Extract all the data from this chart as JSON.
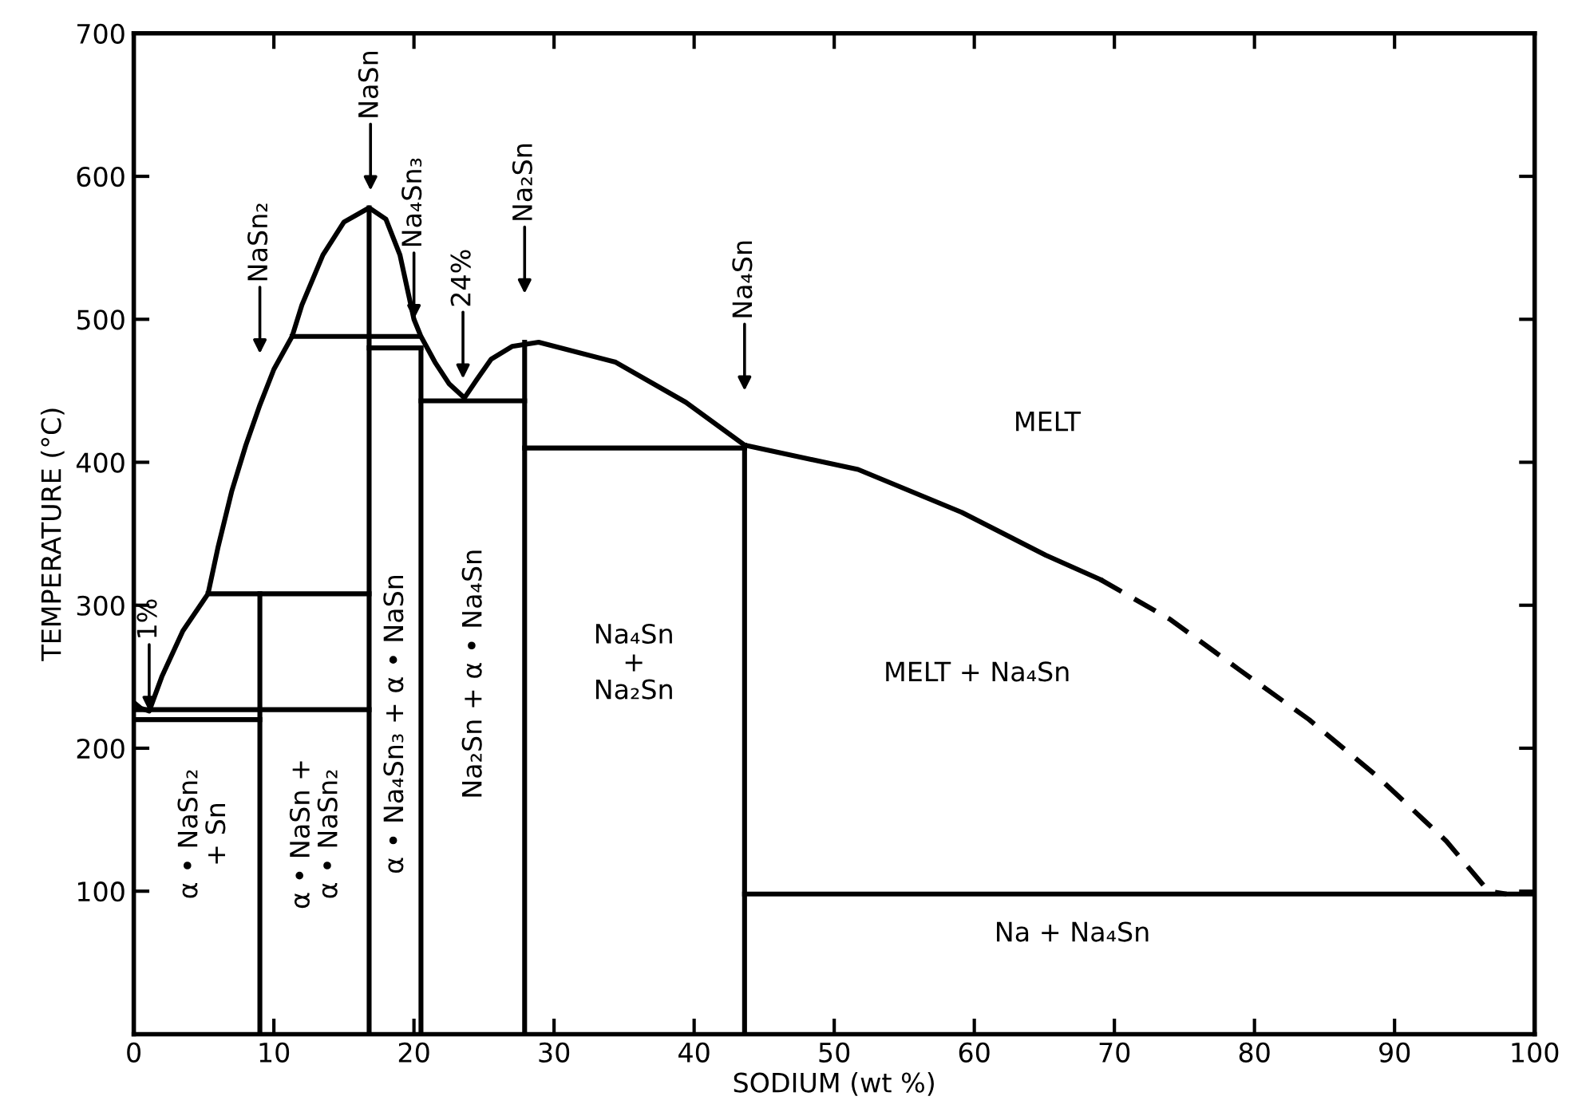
{
  "chart_data": {
    "type": "line",
    "xlabel": "SODIUM (wt %)",
    "ylabel": "TEMPERATURE (°C)",
    "xlim": [
      0,
      100
    ],
    "ylim": [
      0,
      700
    ],
    "xticks": [
      0,
      10,
      20,
      30,
      40,
      50,
      60,
      70,
      80,
      90,
      100
    ],
    "yticks": [
      100,
      200,
      300,
      400,
      500,
      600,
      700
    ],
    "grid": false,
    "legend": false,
    "marker": "none",
    "series": [
      {
        "color": "#000000",
        "line_style": "solid",
        "x": [
          0,
          0.5,
          1.1,
          2,
          3.5,
          5.3,
          6,
          7,
          8,
          9,
          10,
          11.3,
          12,
          13.5,
          15,
          16.8,
          18,
          19,
          20,
          20.5,
          21.5,
          22.5,
          23.6,
          24.5,
          25.5,
          27,
          28.9,
          34.4,
          39.4,
          43.6,
          51.7,
          59.1,
          65.1,
          69
        ],
        "values": [
          232,
          228,
          226,
          250,
          282,
          308,
          340,
          380,
          412,
          440,
          465,
          488,
          510,
          545,
          568,
          578,
          570,
          545,
          500,
          488,
          470,
          455,
          445,
          458,
          472,
          481,
          484,
          470,
          442,
          412,
          395,
          365,
          335,
          318
        ]
      },
      {
        "color": "#000000",
        "line_style": "dashed",
        "x": [
          69,
          74,
          78.9,
          83.9,
          88.8,
          93.7,
          96.7,
          98
        ],
        "values": [
          318,
          290,
          255,
          220,
          180,
          135,
          100,
          98
        ]
      },
      {
        "color": "#000000",
        "line_style": "solid",
        "x": [
          0,
          16.8
        ],
        "values": [
          227,
          227
        ]
      },
      {
        "color": "#000000",
        "line_style": "solid",
        "x": [
          0,
          9
        ],
        "values": [
          220,
          220
        ]
      },
      {
        "color": "#000000",
        "line_style": "solid",
        "x": [
          5.3,
          16.8
        ],
        "values": [
          308,
          308
        ]
      },
      {
        "color": "#000000",
        "line_style": "solid",
        "x": [
          9,
          9
        ],
        "values": [
          0,
          308
        ]
      },
      {
        "color": "#000000",
        "line_style": "solid",
        "x": [
          16.8,
          16.8
        ],
        "values": [
          0,
          578
        ]
      },
      {
        "color": "#000000",
        "line_style": "solid",
        "x": [
          11.3,
          20.3
        ],
        "values": [
          488,
          488
        ]
      },
      {
        "color": "#000000",
        "line_style": "solid",
        "x": [
          16.8,
          20.5
        ],
        "values": [
          480,
          480
        ]
      },
      {
        "color": "#000000",
        "line_style": "solid",
        "x": [
          20.5,
          20.5
        ],
        "values": [
          0,
          480
        ]
      },
      {
        "color": "#000000",
        "line_style": "solid",
        "x": [
          20.5,
          27.9
        ],
        "values": [
          443,
          443
        ]
      },
      {
        "color": "#000000",
        "line_style": "solid",
        "x": [
          27.9,
          27.9
        ],
        "values": [
          0,
          484
        ]
      },
      {
        "color": "#000000",
        "line_style": "solid",
        "x": [
          27.9,
          43.6
        ],
        "values": [
          410,
          410
        ]
      },
      {
        "color": "#000000",
        "line_style": "solid",
        "x": [
          43.6,
          43.6
        ],
        "values": [
          0,
          412
        ]
      },
      {
        "color": "#000000",
        "line_style": "solid",
        "x": [
          43.6,
          100
        ],
        "values": [
          98,
          98
        ]
      }
    ],
    "annotations": [
      {
        "text": "1%",
        "x": 1.1,
        "y": 226
      },
      "NaSn₂",
      "NaSn",
      {
        "text": "Na₄Sn₃",
        "x": 20,
        "y": 500
      },
      "24%",
      "Na₂Sn",
      "Na₄Sn",
      "α • NaSn₂\n+ Sn",
      "α • NaSn +\nα • NaSn₂",
      "α • Na₄Sn₃ + α • NaSn",
      "Na₂Sn + α • Na₄Sn",
      "Na₄Sn\n+\nNa₂Sn",
      "MELT",
      "MELT + Na₄Sn",
      "Na + Na₄Sn"
    ]
  }
}
